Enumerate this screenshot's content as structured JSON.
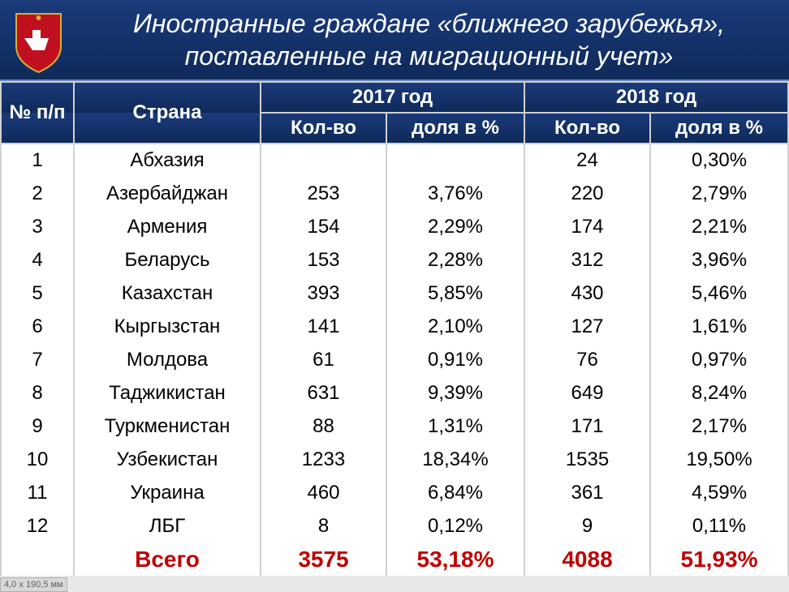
{
  "header": {
    "title": "Иностранные граждане «ближнего зарубежья», поставленные на миграционный учет»"
  },
  "colors": {
    "header_bg_top": "#1a3a7a",
    "header_bg_bottom": "#0f2a5a",
    "header_text": "#ffffff",
    "border": "#d0d0d0",
    "text": "#000000",
    "total": "#c00000",
    "shield_bg": "#c01020",
    "shield_symbol": "#ffffff"
  },
  "table": {
    "columns": {
      "num": "№ п/п",
      "country": "Страна",
      "year2017": "2017 год",
      "year2018": "2018 год",
      "qty": "Кол-во",
      "pct": "доля в %"
    },
    "rows": [
      {
        "num": "1",
        "country": "Абхазия",
        "q17": "",
        "p17": "",
        "q18": "24",
        "p18": "0,30%"
      },
      {
        "num": "2",
        "country": "Азербайджан",
        "q17": "253",
        "p17": "3,76%",
        "q18": "220",
        "p18": "2,79%"
      },
      {
        "num": "3",
        "country": "Армения",
        "q17": "154",
        "p17": "2,29%",
        "q18": "174",
        "p18": "2,21%"
      },
      {
        "num": "4",
        "country": "Беларусь",
        "q17": "153",
        "p17": "2,28%",
        "q18": "312",
        "p18": "3,96%"
      },
      {
        "num": "5",
        "country": "Казахстан",
        "q17": "393",
        "p17": "5,85%",
        "q18": "430",
        "p18": "5,46%"
      },
      {
        "num": "6",
        "country": "Кыргызстан",
        "q17": "141",
        "p17": "2,10%",
        "q18": "127",
        "p18": "1,61%"
      },
      {
        "num": "7",
        "country": "Молдова",
        "q17": "61",
        "p17": "0,91%",
        "q18": "76",
        "p18": "0,97%"
      },
      {
        "num": "8",
        "country": "Таджикистан",
        "q17": "631",
        "p17": "9,39%",
        "q18": "649",
        "p18": "8,24%"
      },
      {
        "num": "9",
        "country": "Туркменистан",
        "q17": "88",
        "p17": "1,31%",
        "q18": "171",
        "p18": "2,17%"
      },
      {
        "num": "10",
        "country": "Узбекистан",
        "q17": "1233",
        "p17": "18,34%",
        "q18": "1535",
        "p18": "19,50%"
      },
      {
        "num": "11",
        "country": "Украина",
        "q17": "460",
        "p17": "6,84%",
        "q18": "361",
        "p18": "4,59%"
      },
      {
        "num": "12",
        "country": "ЛБГ",
        "q17": "8",
        "p17": "0,12%",
        "q18": "9",
        "p18": "0,11%"
      }
    ],
    "total": {
      "label": "Всего",
      "q17": "3575",
      "p17": "53,18%",
      "q18": "4088",
      "p18": "51,93%"
    }
  },
  "status": "4,0 x 190,5 мм"
}
